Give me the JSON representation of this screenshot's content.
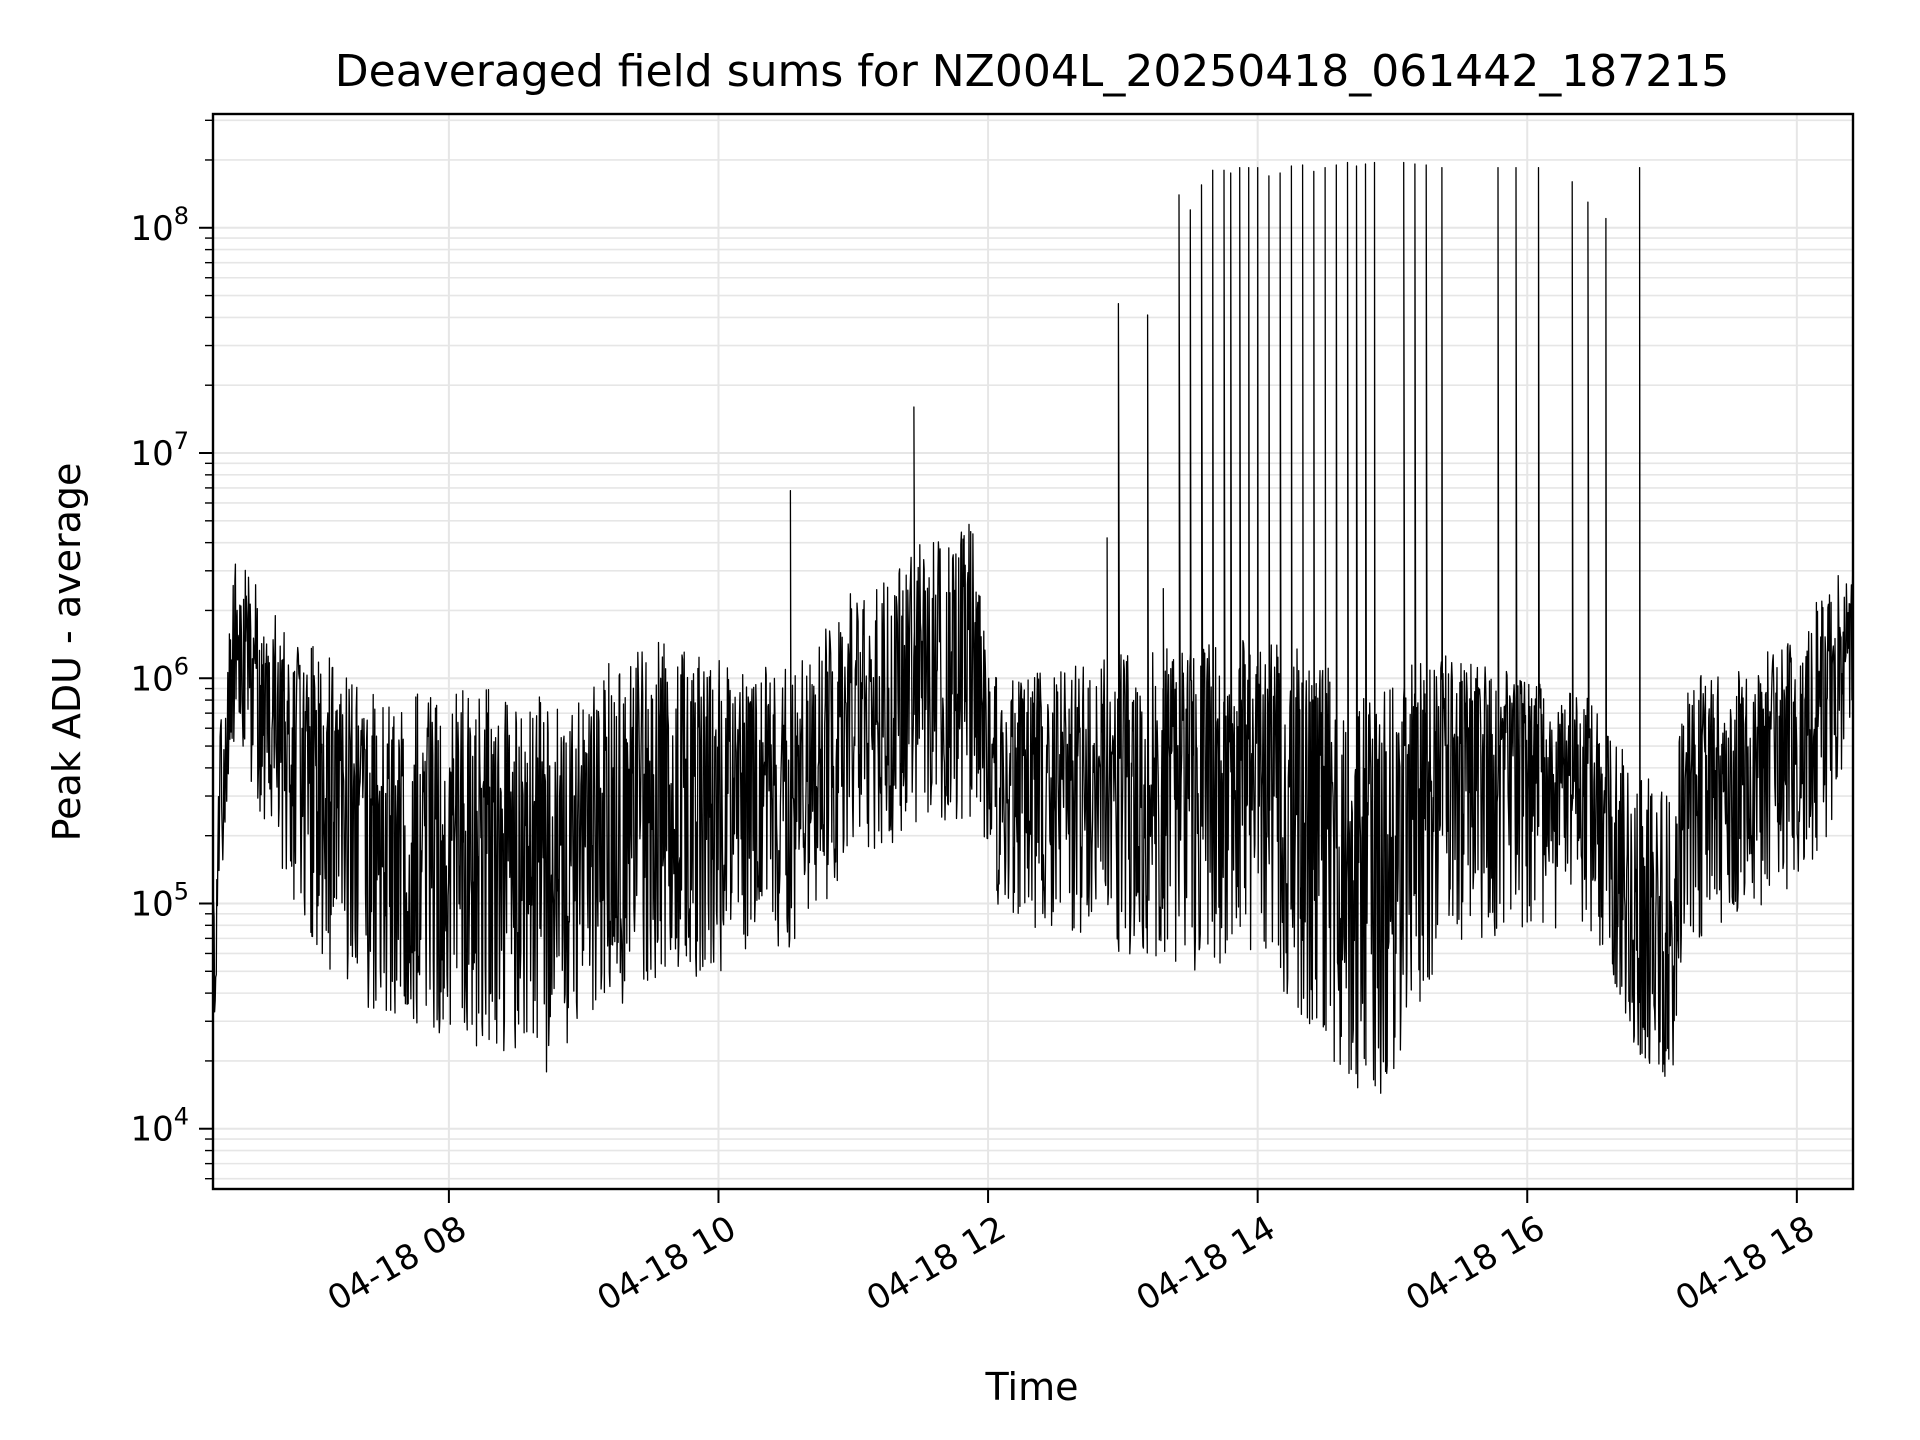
{
  "chart_data": {
    "type": "line",
    "title": "Deaveraged field sums for NZ004L_20250418_061442_187215",
    "xlabel": "Time",
    "ylabel": "Peak ADU - average",
    "x_range": [
      "2025-04-18 06:15",
      "2025-04-18 18:25"
    ],
    "ylim": [
      5400,
      320000000
    ],
    "y_scale": "log",
    "x_ticks": [
      {
        "value": "2025-04-18 08:00",
        "label": "04-18 08"
      },
      {
        "value": "2025-04-18 10:00",
        "label": "04-18 10"
      },
      {
        "value": "2025-04-18 12:00",
        "label": "04-18 12"
      },
      {
        "value": "2025-04-18 14:00",
        "label": "04-18 14"
      },
      {
        "value": "2025-04-18 16:00",
        "label": "04-18 16"
      },
      {
        "value": "2025-04-18 18:00",
        "label": "04-18 18"
      }
    ],
    "y_ticks": [
      {
        "value": 10000,
        "base": "10",
        "exp": "4"
      },
      {
        "value": 100000,
        "base": "10",
        "exp": "5"
      },
      {
        "value": 1000000,
        "base": "10",
        "exp": "6"
      },
      {
        "value": 10000000,
        "base": "10",
        "exp": "7"
      },
      {
        "value": 100000000,
        "base": "10",
        "exp": "8"
      }
    ],
    "grid": true,
    "line_color": "#000000",
    "envelope": [
      {
        "t": "2025-04-18 06:15",
        "center": 60000,
        "low": 24000,
        "high": 100000
      },
      {
        "t": "2025-04-18 06:20",
        "center": 500000,
        "low": 200000,
        "high": 1500000
      },
      {
        "t": "2025-04-18 06:25",
        "center": 1300000,
        "low": 500000,
        "high": 4000000
      },
      {
        "t": "2025-04-18 06:40",
        "center": 700000,
        "low": 200000,
        "high": 2000000
      },
      {
        "t": "2025-04-18 07:00",
        "center": 450000,
        "low": 60000,
        "high": 1400000
      },
      {
        "t": "2025-04-18 07:30",
        "center": 220000,
        "low": 30000,
        "high": 800000
      },
      {
        "t": "2025-04-18 08:00",
        "center": 180000,
        "low": 25000,
        "high": 900000
      },
      {
        "t": "2025-04-18 08:30",
        "center": 150000,
        "low": 20000,
        "high": 900000
      },
      {
        "t": "2025-04-18 08:45",
        "center": 140000,
        "low": 16000,
        "high": 800000
      },
      {
        "t": "2025-04-18 09:00",
        "center": 250000,
        "low": 30000,
        "high": 1000000
      },
      {
        "t": "2025-04-18 09:30",
        "center": 280000,
        "low": 40000,
        "high": 1500000
      },
      {
        "t": "2025-04-18 10:00",
        "center": 330000,
        "low": 50000,
        "high": 1200000
      },
      {
        "t": "2025-04-18 10:30",
        "center": 360000,
        "low": 60000,
        "high": 1100000
      },
      {
        "t": "2025-04-18 11:00",
        "center": 650000,
        "low": 150000,
        "high": 2500000
      },
      {
        "t": "2025-04-18 11:30",
        "center": 1100000,
        "low": 200000,
        "high": 4000000
      },
      {
        "t": "2025-04-18 11:55",
        "center": 1200000,
        "low": 250000,
        "high": 5000000
      },
      {
        "t": "2025-04-18 12:00",
        "center": 450000,
        "low": 100000,
        "high": 1000000
      },
      {
        "t": "2025-04-18 12:30",
        "center": 400000,
        "low": 70000,
        "high": 1100000
      },
      {
        "t": "2025-04-18 13:00",
        "center": 350000,
        "low": 60000,
        "high": 1300000
      },
      {
        "t": "2025-04-18 13:30",
        "center": 300000,
        "low": 50000,
        "high": 1400000
      },
      {
        "t": "2025-04-18 14:00",
        "center": 450000,
        "low": 60000,
        "high": 1600000
      },
      {
        "t": "2025-04-18 14:30",
        "center": 250000,
        "low": 20000,
        "high": 1200000
      },
      {
        "t": "2025-04-18 14:50",
        "center": 150000,
        "low": 9000,
        "high": 800000
      },
      {
        "t": "2025-04-18 15:10",
        "center": 350000,
        "low": 30000,
        "high": 1200000
      },
      {
        "t": "2025-04-18 15:30",
        "center": 550000,
        "low": 60000,
        "high": 1300000
      },
      {
        "t": "2025-04-18 16:00",
        "center": 400000,
        "low": 80000,
        "high": 1000000
      },
      {
        "t": "2025-04-18 16:30",
        "center": 350000,
        "low": 70000,
        "high": 800000
      },
      {
        "t": "2025-04-18 16:50",
        "center": 80000,
        "low": 20000,
        "high": 400000
      },
      {
        "t": "2025-04-18 17:05",
        "center": 60000,
        "low": 16000,
        "high": 300000
      },
      {
        "t": "2025-04-18 17:10",
        "center": 350000,
        "low": 60000,
        "high": 1000000
      },
      {
        "t": "2025-04-18 17:30",
        "center": 400000,
        "low": 80000,
        "high": 1100000
      },
      {
        "t": "2025-04-18 18:00",
        "center": 600000,
        "low": 120000,
        "high": 1600000
      },
      {
        "t": "2025-04-18 18:25",
        "center": 1200000,
        "low": 300000,
        "high": 4000000
      }
    ],
    "spikes": [
      {
        "t": "2025-04-18 10:32",
        "value": 6800000
      },
      {
        "t": "2025-04-18 11:27",
        "value": 16000000
      },
      {
        "t": "2025-04-18 12:53",
        "value": 4200000
      },
      {
        "t": "2025-04-18 12:58",
        "value": 46000000
      },
      {
        "t": "2025-04-18 13:11",
        "value": 41000000
      },
      {
        "t": "2025-04-18 13:18",
        "value": 2500000
      },
      {
        "t": "2025-04-18 13:25",
        "value": 140000000
      },
      {
        "t": "2025-04-18 13:30",
        "value": 120000000
      },
      {
        "t": "2025-04-18 13:35",
        "value": 155000000
      },
      {
        "t": "2025-04-18 13:40",
        "value": 180000000
      },
      {
        "t": "2025-04-18 13:45",
        "value": 180000000
      },
      {
        "t": "2025-04-18 13:48",
        "value": 175000000
      },
      {
        "t": "2025-04-18 13:52",
        "value": 185000000
      },
      {
        "t": "2025-04-18 13:56",
        "value": 185000000
      },
      {
        "t": "2025-04-18 14:00",
        "value": 185000000
      },
      {
        "t": "2025-04-18 14:05",
        "value": 170000000
      },
      {
        "t": "2025-04-18 14:10",
        "value": 175000000
      },
      {
        "t": "2025-04-18 14:15",
        "value": 188000000
      },
      {
        "t": "2025-04-18 14:20",
        "value": 190000000
      },
      {
        "t": "2025-04-18 14:25",
        "value": 178000000
      },
      {
        "t": "2025-04-18 14:30",
        "value": 185000000
      },
      {
        "t": "2025-04-18 14:35",
        "value": 190000000
      },
      {
        "t": "2025-04-18 14:40",
        "value": 195000000
      },
      {
        "t": "2025-04-18 14:44",
        "value": 188000000
      },
      {
        "t": "2025-04-18 14:48",
        "value": 192000000
      },
      {
        "t": "2025-04-18 14:52",
        "value": 195000000
      },
      {
        "t": "2025-04-18 15:05",
        "value": 195000000
      },
      {
        "t": "2025-04-18 15:10",
        "value": 192000000
      },
      {
        "t": "2025-04-18 15:15",
        "value": 190000000
      },
      {
        "t": "2025-04-18 15:22",
        "value": 185000000
      },
      {
        "t": "2025-04-18 15:47",
        "value": 185000000
      },
      {
        "t": "2025-04-18 15:55",
        "value": 185000000
      },
      {
        "t": "2025-04-18 16:05",
        "value": 185000000
      },
      {
        "t": "2025-04-18 16:20",
        "value": 160000000
      },
      {
        "t": "2025-04-18 16:27",
        "value": 130000000
      },
      {
        "t": "2025-04-18 16:35",
        "value": 110000000
      },
      {
        "t": "2025-04-18 16:50",
        "value": 185000000
      }
    ]
  }
}
